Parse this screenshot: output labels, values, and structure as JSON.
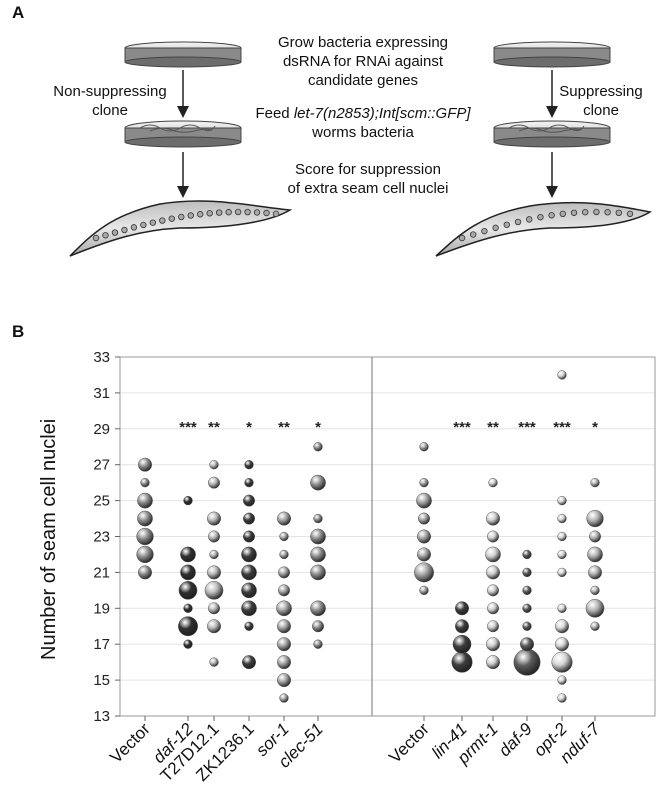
{
  "panels": {
    "a_label": "A",
    "b_label": "B"
  },
  "schematic": {
    "step1_line1": "Grow bacteria expressing",
    "step1_line2": "dsRNA for RNAi against",
    "step1_line3": "candidate genes",
    "step2_prefix": "Feed ",
    "step2_strain": "let-7(n2853);Int[scm::GFP]",
    "step2_line2": "worms bacteria",
    "step3_line1": "Score for suppression",
    "step3_line2": "of extra seam cell nuclei",
    "left_label_line1": "Non-suppressing",
    "left_label_line2": "clone",
    "right_label_line1": "Suppressing",
    "right_label_line2": "clone"
  },
  "chart_data": {
    "type": "scatter",
    "subtype": "bubble",
    "ylabel": "Number of seam cell nuclei",
    "ylim": [
      13,
      33
    ],
    "yticks": [
      13,
      15,
      17,
      19,
      21,
      23,
      25,
      27,
      29,
      31,
      33
    ],
    "grid": true,
    "groups": [
      {
        "panel": "left",
        "categories": [
          {
            "name": "Vector",
            "italic": false,
            "color": "#8e8e8e",
            "significance": "",
            "points": [
              [
                27,
                3
              ],
              [
                26,
                1
              ],
              [
                25,
                4
              ],
              [
                24,
                4
              ],
              [
                23,
                5
              ],
              [
                22,
                5
              ],
              [
                21,
                3
              ]
            ]
          },
          {
            "name": "daf-12",
            "italic": true,
            "color": "#2f2f2f",
            "significance": "***",
            "points": [
              [
                25,
                1
              ],
              [
                22,
                4
              ],
              [
                21,
                4
              ],
              [
                20,
                6
              ],
              [
                19,
                1
              ],
              [
                18,
                7
              ],
              [
                17,
                1
              ]
            ]
          },
          {
            "name": "T27D12.1",
            "italic": false,
            "color": "#b8b8b8",
            "significance": "**",
            "points": [
              [
                27,
                1
              ],
              [
                26,
                2
              ],
              [
                24,
                3
              ],
              [
                23,
                2
              ],
              [
                22,
                1
              ],
              [
                21,
                3
              ],
              [
                20,
                6
              ],
              [
                19,
                2
              ],
              [
                18,
                3
              ],
              [
                16,
                1
              ]
            ]
          },
          {
            "name": "ZK1236.1",
            "italic": false,
            "color": "#3c3c3c",
            "significance": "*",
            "points": [
              [
                27,
                1
              ],
              [
                26,
                1
              ],
              [
                25,
                2
              ],
              [
                24,
                2
              ],
              [
                23,
                2
              ],
              [
                22,
                4
              ],
              [
                21,
                4
              ],
              [
                20,
                4
              ],
              [
                19,
                4
              ],
              [
                18,
                1
              ],
              [
                16,
                3
              ]
            ]
          },
          {
            "name": "sor-1",
            "italic": true,
            "color": "#a4a4a4",
            "significance": "**",
            "points": [
              [
                24,
                3
              ],
              [
                23,
                1
              ],
              [
                22,
                1
              ],
              [
                21,
                2
              ],
              [
                20,
                2
              ],
              [
                19,
                4
              ],
              [
                18,
                3
              ],
              [
                17,
                3
              ],
              [
                16,
                3
              ],
              [
                15,
                3
              ],
              [
                14,
                1
              ]
            ]
          },
          {
            "name": "clec-51",
            "italic": true,
            "color": "#8e8e8e",
            "significance": "*",
            "points": [
              [
                28,
                1
              ],
              [
                26,
                4
              ],
              [
                24,
                1
              ],
              [
                23,
                4
              ],
              [
                22,
                4
              ],
              [
                21,
                4
              ],
              [
                19,
                4
              ],
              [
                18,
                2
              ],
              [
                17,
                1
              ]
            ]
          }
        ]
      },
      {
        "panel": "right",
        "categories": [
          {
            "name": "Vector",
            "italic": false,
            "color": "#a4a4a4",
            "significance": "",
            "points": [
              [
                28,
                1
              ],
              [
                26,
                1
              ],
              [
                25,
                4
              ],
              [
                24,
                2
              ],
              [
                23,
                3
              ],
              [
                22,
                3
              ],
              [
                21,
                7
              ],
              [
                20,
                1
              ]
            ]
          },
          {
            "name": "lin-41",
            "italic": true,
            "color": "#3c3c3c",
            "significance": "***",
            "points": [
              [
                19,
                3
              ],
              [
                18,
                3
              ],
              [
                17,
                6
              ],
              [
                16,
                8
              ]
            ]
          },
          {
            "name": "prmt-1",
            "italic": true,
            "color": "#cfcfcf",
            "significance": "**",
            "points": [
              [
                26,
                1
              ],
              [
                24,
                3
              ],
              [
                23,
                2
              ],
              [
                22,
                4
              ],
              [
                21,
                3
              ],
              [
                20,
                2
              ],
              [
                19,
                2
              ],
              [
                18,
                2
              ],
              [
                17,
                3
              ],
              [
                16,
                3
              ]
            ]
          },
          {
            "name": "daf-9",
            "italic": true,
            "color": "#5c5c5c",
            "significance": "***",
            "points": [
              [
                22,
                1
              ],
              [
                21,
                1
              ],
              [
                20,
                1
              ],
              [
                19,
                1
              ],
              [
                18,
                1
              ],
              [
                17,
                3
              ],
              [
                16,
                14
              ]
            ]
          },
          {
            "name": "opt-2",
            "italic": true,
            "color": "#d5d5d5",
            "significance": "***",
            "points": [
              [
                32,
                1
              ],
              [
                25,
                1
              ],
              [
                24,
                1
              ],
              [
                23,
                1
              ],
              [
                22,
                1
              ],
              [
                21,
                1
              ],
              [
                19,
                1
              ],
              [
                18,
                3
              ],
              [
                17,
                3
              ],
              [
                16,
                8
              ],
              [
                15,
                1
              ],
              [
                14,
                1
              ]
            ]
          },
          {
            "name": "nduf-7",
            "italic": true,
            "color": "#b2b2b2",
            "significance": "*",
            "points": [
              [
                26,
                1
              ],
              [
                24,
                5
              ],
              [
                23,
                2
              ],
              [
                22,
                4
              ],
              [
                21,
                3
              ],
              [
                20,
                1
              ],
              [
                19,
                6
              ],
              [
                18,
                1
              ]
            ]
          }
        ]
      }
    ]
  }
}
